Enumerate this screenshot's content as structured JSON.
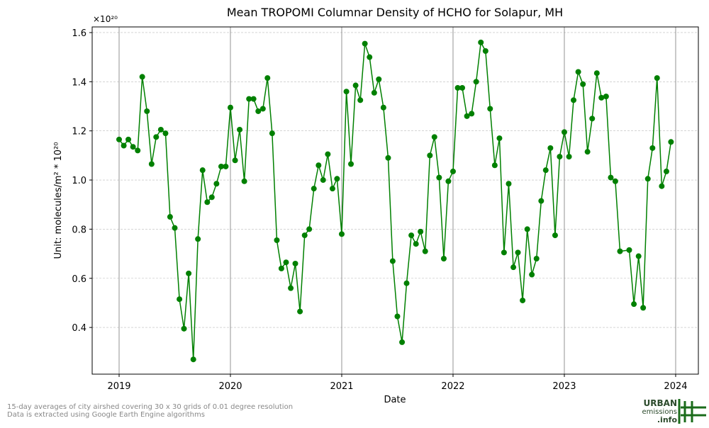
{
  "chart_data": {
    "type": "line",
    "title": "Mean TROPOMI Columnar Density of HCHO for Solapur, MH",
    "x_label": "Date",
    "y_label": "Unit: molecules/m² * 10²⁰",
    "y_multiplier": "×10²⁰",
    "footnote": [
      "15-day averages of city airshed covering 30 x 30 grids of 0.01 degree resolution",
      "Data is extracted using Google Earth Engine algorithms"
    ],
    "logo": [
      "URBAN",
      "emissions",
      ".info"
    ],
    "grid": true,
    "xlim": [
      2018.758,
      2024.204
    ],
    "xticks": [
      2019,
      2020,
      2021,
      2022,
      2023,
      2024
    ],
    "ylim": [
      0.21,
      1.623
    ],
    "yticks": [
      {
        "value": 0.4,
        "label": "0.4"
      },
      {
        "value": 0.6,
        "label": "0.6"
      },
      {
        "value": 0.8,
        "label": "0.8"
      },
      {
        "value": 1.0,
        "label": "1.0"
      },
      {
        "value": 1.2,
        "label": "1.2"
      },
      {
        "value": 1.4,
        "label": "1.4"
      },
      {
        "value": 1.6,
        "label": "1.6"
      }
    ],
    "series": [
      {
        "name": "HCHO",
        "color": "#008000",
        "x": [
          2019.0,
          2019.042,
          2019.083,
          2019.125,
          2019.167,
          2019.208,
          2019.25,
          2019.292,
          2019.333,
          2019.375,
          2019.417,
          2019.458,
          2019.5,
          2019.542,
          2019.583,
          2019.625,
          2019.667,
          2019.708,
          2019.75,
          2019.792,
          2019.833,
          2019.875,
          2019.917,
          2019.958,
          2020.0,
          2020.042,
          2020.083,
          2020.125,
          2020.167,
          2020.208,
          2020.25,
          2020.292,
          2020.333,
          2020.375,
          2020.417,
          2020.458,
          2020.5,
          2020.542,
          2020.583,
          2020.625,
          2020.667,
          2020.708,
          2020.75,
          2020.792,
          2020.833,
          2020.875,
          2020.917,
          2020.958,
          2021.0,
          2021.042,
          2021.083,
          2021.125,
          2021.167,
          2021.208,
          2021.25,
          2021.292,
          2021.333,
          2021.375,
          2021.417,
          2021.458,
          2021.5,
          2021.542,
          2021.583,
          2021.625,
          2021.667,
          2021.708,
          2021.75,
          2021.792,
          2021.833,
          2021.875,
          2021.917,
          2021.958,
          2022.0,
          2022.042,
          2022.083,
          2022.125,
          2022.167,
          2022.208,
          2022.25,
          2022.292,
          2022.333,
          2022.375,
          2022.417,
          2022.458,
          2022.5,
          2022.542,
          2022.583,
          2022.625,
          2022.667,
          2022.708,
          2022.75,
          2022.792,
          2022.833,
          2022.875,
          2022.917,
          2022.958,
          2023.0,
          2023.042,
          2023.083,
          2023.125,
          2023.167,
          2023.208,
          2023.25,
          2023.292,
          2023.333,
          2023.375,
          2023.417,
          2023.458,
          2023.5,
          2023.583,
          2023.625,
          2023.667,
          2023.708,
          2023.75,
          2023.792,
          2023.833,
          2023.875,
          2023.917,
          2023.958
        ],
        "values": [
          1.165,
          1.14,
          1.165,
          1.135,
          1.12,
          1.42,
          1.28,
          1.065,
          1.175,
          1.205,
          1.19,
          0.85,
          0.805,
          0.515,
          0.395,
          0.62,
          0.27,
          0.76,
          1.04,
          0.91,
          0.93,
          0.985,
          1.055,
          1.055,
          1.295,
          1.08,
          1.205,
          0.995,
          1.33,
          1.33,
          1.28,
          1.29,
          1.415,
          1.19,
          0.755,
          0.64,
          0.665,
          0.56,
          0.66,
          0.465,
          0.775,
          0.8,
          0.965,
          1.06,
          1.0,
          1.105,
          0.965,
          1.005,
          0.78,
          1.36,
          1.065,
          1.385,
          1.325,
          1.555,
          1.5,
          1.355,
          1.41,
          1.295,
          1.09,
          0.67,
          0.445,
          0.34,
          0.58,
          0.775,
          0.74,
          0.79,
          0.71,
          1.1,
          1.175,
          1.01,
          0.68,
          0.995,
          1.035,
          1.375,
          1.375,
          1.26,
          1.27,
          1.4,
          1.56,
          1.525,
          1.29,
          1.06,
          1.17,
          0.705,
          0.985,
          0.645,
          0.705,
          0.51,
          0.8,
          0.615,
          0.68,
          0.915,
          1.04,
          1.13,
          0.775,
          1.095,
          1.195,
          1.095,
          1.325,
          1.44,
          1.39,
          1.115,
          1.25,
          1.435,
          1.335,
          1.34,
          1.01,
          0.995,
          0.71,
          0.715,
          0.495,
          0.69,
          0.48,
          1.005,
          1.13,
          1.415,
          0.975,
          1.035,
          1.155
        ]
      }
    ]
  }
}
